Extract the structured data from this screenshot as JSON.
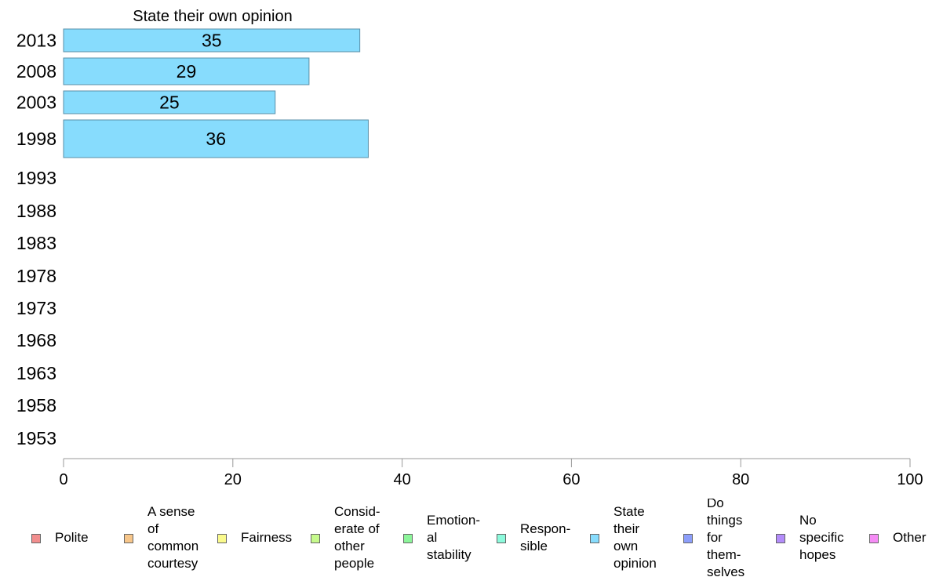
{
  "chart_data": {
    "type": "bar",
    "orientation": "horizontal",
    "title": "State their own opinion",
    "xlabel": "",
    "ylabel": "",
    "categories": [
      "2013",
      "2008",
      "2003",
      "1998",
      "1993",
      "1988",
      "1983",
      "1978",
      "1973",
      "1968",
      "1963",
      "1958",
      "1953"
    ],
    "values": [
      35,
      29,
      25,
      36,
      null,
      null,
      null,
      null,
      null,
      null,
      null,
      null,
      null
    ],
    "data_labels": [
      "35",
      "29",
      "25",
      "36",
      "",
      "",
      "",
      "",
      "",
      "",
      "",
      "",
      ""
    ],
    "xlim": [
      0,
      100
    ],
    "x_ticks": [
      "0",
      "20",
      "40",
      "60",
      "80",
      "100"
    ],
    "bar_color": "#87dcfd",
    "bar_edge_color": "#5a8fa8",
    "grid": false,
    "legend_position": "bottom",
    "legend": [
      {
        "label": "Polite",
        "color": "#f28e8e"
      },
      {
        "label": "A sense\nof\ncommon\ncourtesy",
        "color": "#f7c68a"
      },
      {
        "label": "Fairness",
        "color": "#fafa8c"
      },
      {
        "label": "Consid-\nerate of\nother\npeople",
        "color": "#c6fa8c"
      },
      {
        "label": "Emotion-\nal\nstability",
        "color": "#8cf59a"
      },
      {
        "label": "Respon-\nsible",
        "color": "#8cfadc"
      },
      {
        "label": "State\ntheir\nown\nopinion",
        "color": "#87dcfd"
      },
      {
        "label": "Do\nthings\nfor\nthem-\nselves",
        "color": "#8c9efa"
      },
      {
        "label": "No\nspecific\nhopes",
        "color": "#b38cfa"
      },
      {
        "label": "Other",
        "color": "#f58cf5"
      }
    ]
  }
}
